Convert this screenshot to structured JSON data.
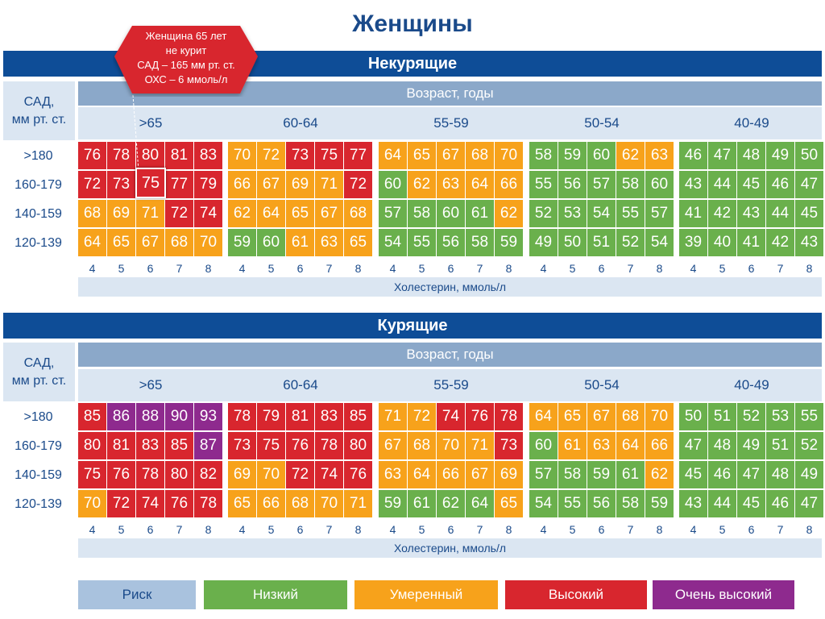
{
  "title": "Женщины",
  "colors": {
    "L": "#6ab04c",
    "M": "#f7a21b",
    "H": "#d8262e",
    "V": "#8e2a8e",
    "risk_label_bg": "#a9c2de",
    "band": "#0e4d97"
  },
  "labels": {
    "sad": [
      "САД,",
      "мм рт. ст."
    ],
    "age_header": "Возраст, годы",
    "cholesterol": "Холестерин, ммоль/л"
  },
  "callout": {
    "lines": [
      "Женщина 65 лет",
      "не курит",
      "САД – 165 мм рт. ст.",
      "ОХС – 6 ммоль/л"
    ],
    "highlight_value": "75"
  },
  "legend": [
    {
      "label": "Риск",
      "key": "risk"
    },
    {
      "label": "Низкий",
      "key": "L"
    },
    {
      "label": "Умеренный",
      "key": "M"
    },
    {
      "label": "Высокий",
      "key": "H"
    },
    {
      "label": "Очень высокий",
      "key": "V"
    }
  ],
  "chart_data": {
    "type": "table",
    "age_groups": [
      ">65",
      "60-64",
      "55-59",
      "50-54",
      "40-49"
    ],
    "sbp_groups": [
      ">180",
      "160-179",
      "140-159",
      "120-139"
    ],
    "cholesterol": [
      "4",
      "5",
      "6",
      "7",
      "8"
    ],
    "panels": [
      {
        "title": "Некурящие",
        "values": [
          [
            [
              76,
              78,
              80,
              81,
              83
            ],
            [
              72,
              73,
              75,
              77,
              79
            ],
            [
              68,
              69,
              71,
              72,
              74
            ],
            [
              64,
              65,
              67,
              68,
              70
            ]
          ],
          [
            [
              70,
              72,
              73,
              75,
              77
            ],
            [
              66,
              67,
              69,
              71,
              72
            ],
            [
              62,
              64,
              65,
              67,
              68
            ],
            [
              59,
              60,
              61,
              63,
              65
            ]
          ],
          [
            [
              64,
              65,
              67,
              68,
              70
            ],
            [
              60,
              62,
              63,
              64,
              66
            ],
            [
              57,
              58,
              60,
              61,
              62
            ],
            [
              54,
              55,
              56,
              58,
              59
            ]
          ],
          [
            [
              58,
              59,
              60,
              62,
              63
            ],
            [
              55,
              56,
              57,
              58,
              60
            ],
            [
              52,
              53,
              54,
              55,
              57
            ],
            [
              49,
              50,
              51,
              52,
              54
            ]
          ],
          [
            [
              46,
              47,
              48,
              49,
              50
            ],
            [
              43,
              44,
              45,
              46,
              47
            ],
            [
              41,
              42,
              43,
              44,
              45
            ],
            [
              39,
              40,
              41,
              42,
              43
            ]
          ]
        ],
        "risk": [
          [
            [
              "H",
              "H",
              "H",
              "H",
              "H"
            ],
            [
              "H",
              "H",
              "H",
              "H",
              "H"
            ],
            [
              "M",
              "M",
              "M",
              "H",
              "H"
            ],
            [
              "M",
              "M",
              "M",
              "M",
              "M"
            ]
          ],
          [
            [
              "M",
              "M",
              "H",
              "H",
              "H"
            ],
            [
              "M",
              "M",
              "M",
              "M",
              "H"
            ],
            [
              "M",
              "M",
              "M",
              "M",
              "M"
            ],
            [
              "L",
              "L",
              "M",
              "M",
              "M"
            ]
          ],
          [
            [
              "M",
              "M",
              "M",
              "M",
              "M"
            ],
            [
              "L",
              "M",
              "M",
              "M",
              "M"
            ],
            [
              "L",
              "L",
              "L",
              "L",
              "M"
            ],
            [
              "L",
              "L",
              "L",
              "L",
              "L"
            ]
          ],
          [
            [
              "L",
              "L",
              "L",
              "M",
              "M"
            ],
            [
              "L",
              "L",
              "L",
              "L",
              "L"
            ],
            [
              "L",
              "L",
              "L",
              "L",
              "L"
            ],
            [
              "L",
              "L",
              "L",
              "L",
              "L"
            ]
          ],
          [
            [
              "L",
              "L",
              "L",
              "L",
              "L"
            ],
            [
              "L",
              "L",
              "L",
              "L",
              "L"
            ],
            [
              "L",
              "L",
              "L",
              "L",
              "L"
            ],
            [
              "L",
              "L",
              "L",
              "L",
              "L"
            ]
          ]
        ]
      },
      {
        "title": "Курящие",
        "values": [
          [
            [
              85,
              86,
              88,
              90,
              93
            ],
            [
              80,
              81,
              83,
              85,
              87
            ],
            [
              75,
              76,
              78,
              80,
              82
            ],
            [
              70,
              72,
              74,
              76,
              78
            ]
          ],
          [
            [
              78,
              79,
              81,
              83,
              85
            ],
            [
              73,
              75,
              76,
              78,
              80
            ],
            [
              69,
              70,
              72,
              74,
              76
            ],
            [
              65,
              66,
              68,
              70,
              71
            ]
          ],
          [
            [
              71,
              72,
              74,
              76,
              78
            ],
            [
              67,
              68,
              70,
              71,
              73
            ],
            [
              63,
              64,
              66,
              67,
              69
            ],
            [
              59,
              61,
              62,
              64,
              65
            ]
          ],
          [
            [
              64,
              65,
              67,
              68,
              70
            ],
            [
              60,
              61,
              63,
              64,
              66
            ],
            [
              57,
              58,
              59,
              61,
              62
            ],
            [
              54,
              55,
              56,
              58,
              59
            ]
          ],
          [
            [
              50,
              51,
              52,
              53,
              55
            ],
            [
              47,
              48,
              49,
              51,
              52
            ],
            [
              45,
              46,
              47,
              48,
              49
            ],
            [
              43,
              44,
              45,
              46,
              47
            ]
          ]
        ],
        "risk": [
          [
            [
              "H",
              "V",
              "V",
              "V",
              "V"
            ],
            [
              "H",
              "H",
              "H",
              "H",
              "V"
            ],
            [
              "H",
              "H",
              "H",
              "H",
              "H"
            ],
            [
              "M",
              "H",
              "H",
              "H",
              "H"
            ]
          ],
          [
            [
              "H",
              "H",
              "H",
              "H",
              "H"
            ],
            [
              "H",
              "H",
              "H",
              "H",
              "H"
            ],
            [
              "M",
              "M",
              "H",
              "H",
              "H"
            ],
            [
              "M",
              "M",
              "M",
              "M",
              "M"
            ]
          ],
          [
            [
              "M",
              "M",
              "H",
              "H",
              "H"
            ],
            [
              "M",
              "M",
              "M",
              "M",
              "H"
            ],
            [
              "M",
              "M",
              "M",
              "M",
              "M"
            ],
            [
              "L",
              "L",
              "L",
              "L",
              "M"
            ]
          ],
          [
            [
              "M",
              "M",
              "M",
              "M",
              "M"
            ],
            [
              "L",
              "M",
              "M",
              "M",
              "M"
            ],
            [
              "L",
              "L",
              "L",
              "L",
              "M"
            ],
            [
              "L",
              "L",
              "L",
              "L",
              "L"
            ]
          ],
          [
            [
              "L",
              "L",
              "L",
              "L",
              "L"
            ],
            [
              "L",
              "L",
              "L",
              "L",
              "L"
            ],
            [
              "L",
              "L",
              "L",
              "L",
              "L"
            ],
            [
              "L",
              "L",
              "L",
              "L",
              "L"
            ]
          ]
        ]
      }
    ]
  }
}
